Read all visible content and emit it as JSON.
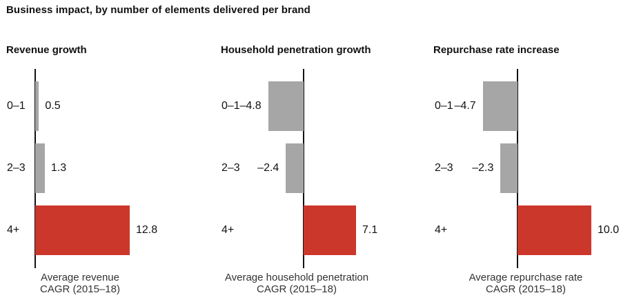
{
  "title": "Business impact, by number of elements delivered per brand",
  "colors": {
    "bar_gray": "#a6a6a6",
    "bar_red": "#cc372b",
    "axis": "#111111",
    "text": "#111111",
    "caption_text": "#333333"
  },
  "chart_data": [
    {
      "type": "bar",
      "orientation": "horizontal",
      "title": "Revenue growth",
      "categories": [
        "0–1",
        "2–3",
        "4+"
      ],
      "values": [
        0.5,
        1.3,
        12.8
      ],
      "value_labels": [
        "0.5",
        "1.3",
        "12.8"
      ],
      "bar_color_keys": [
        "bar_gray",
        "bar_gray",
        "bar_red"
      ],
      "baseline": 0,
      "xlim": [
        0,
        12.8
      ],
      "caption_lines": [
        "Average revenue",
        "CAGR (2015–18)"
      ]
    },
    {
      "type": "bar",
      "orientation": "horizontal",
      "title": "Household penetration growth",
      "categories": [
        "0–1",
        "2–3",
        "4+"
      ],
      "values": [
        -4.8,
        -2.4,
        7.1
      ],
      "value_labels": [
        "–4.8",
        "–2.4",
        "7.1"
      ],
      "bar_color_keys": [
        "bar_gray",
        "bar_gray",
        "bar_red"
      ],
      "baseline": 0,
      "xlim": [
        -4.8,
        7.1
      ],
      "caption_lines": [
        "Average household penetration",
        "CAGR (2015–18)"
      ]
    },
    {
      "type": "bar",
      "orientation": "horizontal",
      "title": "Repurchase rate increase",
      "categories": [
        "0–1",
        "2–3",
        "4+"
      ],
      "values": [
        -4.7,
        -2.3,
        10.0
      ],
      "value_labels": [
        "–4.7",
        "–2.3",
        "10.0"
      ],
      "bar_color_keys": [
        "bar_gray",
        "bar_gray",
        "bar_red"
      ],
      "baseline": 0,
      "xlim": [
        -4.7,
        10.0
      ],
      "caption_lines": [
        "Average repurchase rate",
        "CAGR (2015–18)"
      ]
    }
  ]
}
